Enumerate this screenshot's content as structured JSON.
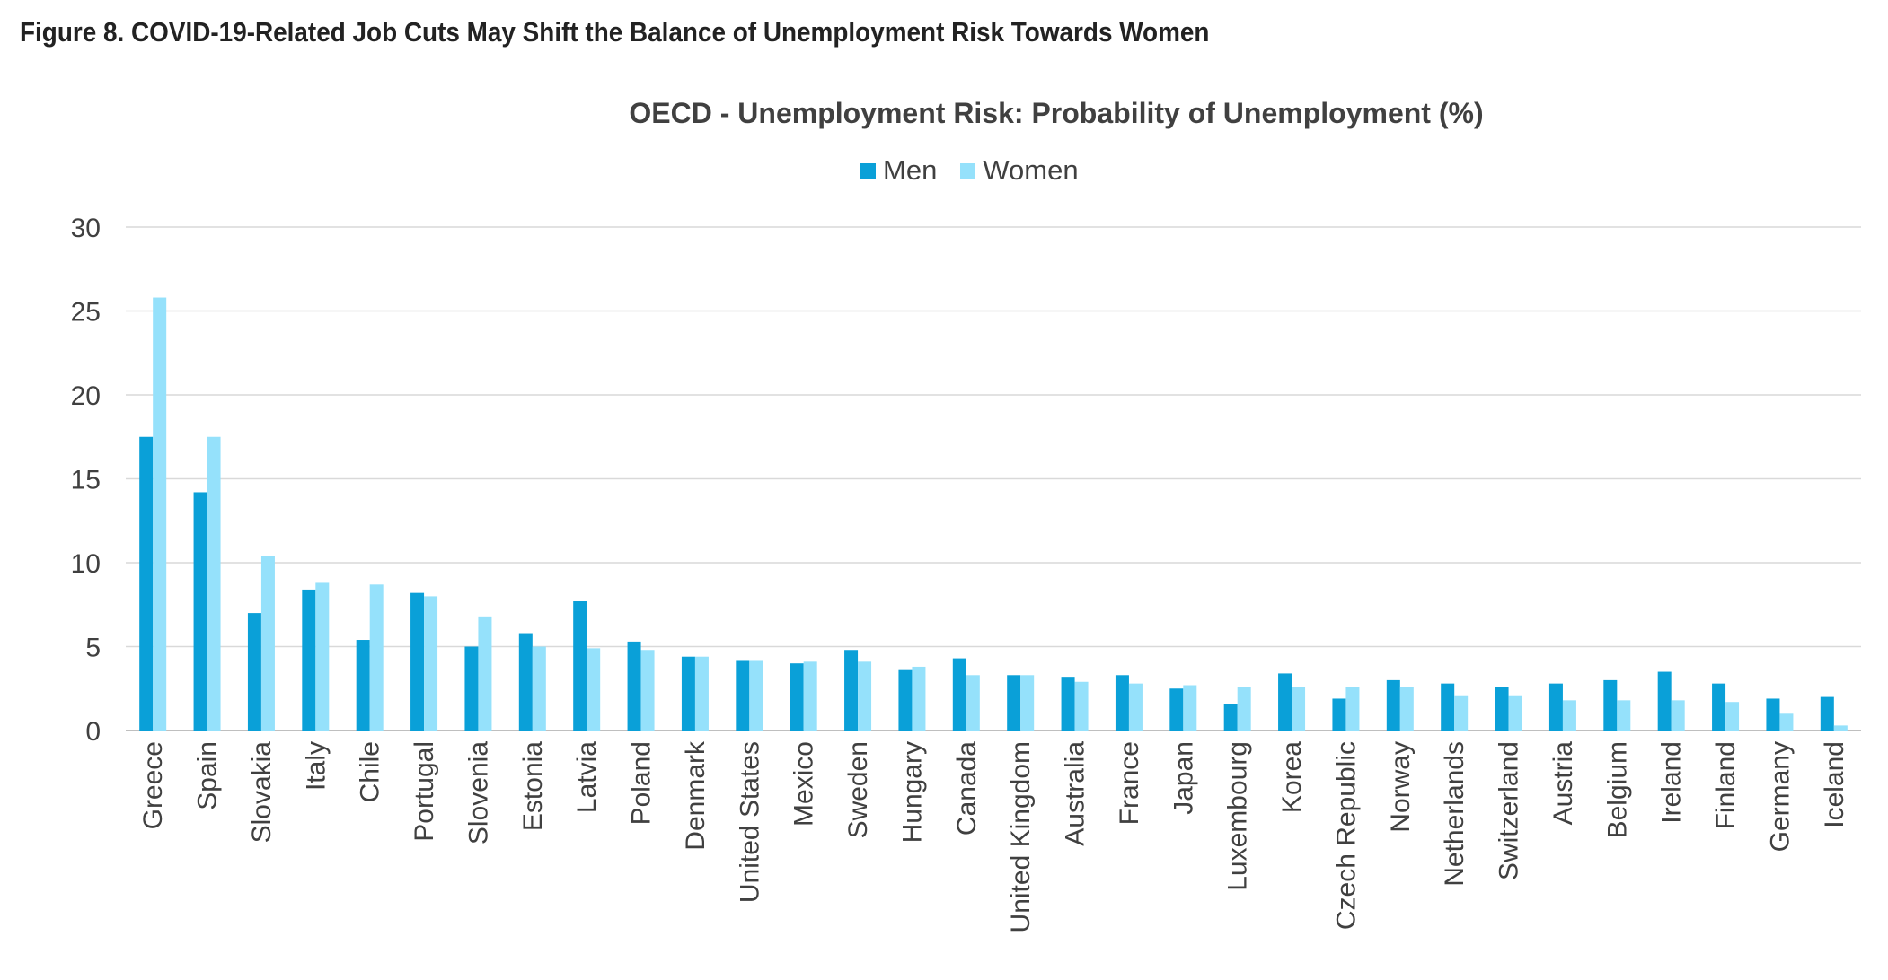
{
  "figure_title": "Figure 8. COVID-19-Related Job Cuts May Shift the Balance of Unemployment Risk Towards Women",
  "chart_data": {
    "type": "bar",
    "title": "OECD - Unemployment Risk: Probability of Unemployment (%)",
    "xlabel": "",
    "ylabel": "",
    "ylim": [
      0,
      30
    ],
    "yticks": [
      0,
      5,
      10,
      15,
      20,
      25,
      30
    ],
    "grid": true,
    "legend_position": "top-center",
    "categories": [
      "Greece",
      "Spain",
      "Slovakia",
      "Italy",
      "Chile",
      "Portugal",
      "Slovenia",
      "Estonia",
      "Latvia",
      "Poland",
      "Denmark",
      "United States",
      "Mexico",
      "Sweden",
      "Hungary",
      "Canada",
      "United Kingdom",
      "Australia",
      "France",
      "Japan",
      "Luxembourg",
      "Korea",
      "Czech Republic",
      "Norway",
      "Netherlands",
      "Switzerland",
      "Austria",
      "Belgium",
      "Ireland",
      "Finland",
      "Germany",
      "Iceland"
    ],
    "series": [
      {
        "name": "Men",
        "color": "#0aa0d8",
        "values": [
          17.5,
          14.2,
          7.0,
          8.4,
          5.4,
          8.2,
          5.0,
          5.8,
          7.7,
          5.3,
          4.4,
          4.2,
          4.0,
          4.8,
          3.6,
          4.3,
          3.3,
          3.2,
          3.3,
          2.5,
          1.6,
          3.4,
          1.9,
          3.0,
          2.8,
          2.6,
          2.8,
          3.0,
          3.5,
          2.8,
          1.9,
          2.0
        ]
      },
      {
        "name": "Women",
        "color": "#95e1fb",
        "values": [
          25.8,
          17.5,
          10.4,
          8.8,
          8.7,
          8.0,
          6.8,
          5.0,
          4.9,
          4.8,
          4.4,
          4.2,
          4.1,
          4.1,
          3.8,
          3.3,
          3.3,
          2.9,
          2.8,
          2.7,
          2.6,
          2.6,
          2.6,
          2.6,
          2.1,
          2.1,
          1.8,
          1.8,
          1.8,
          1.7,
          1.0,
          0.3
        ]
      }
    ]
  }
}
